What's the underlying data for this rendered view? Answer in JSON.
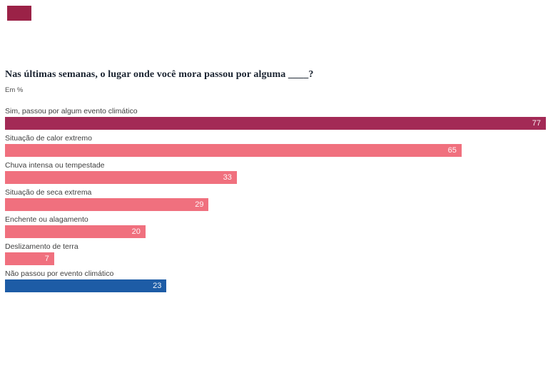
{
  "page": {
    "title": "Nas últimas semanas, o lugar onde você mora passou por alguma ____?",
    "subtitle": "Em %"
  },
  "brand": {
    "color": "#9b2247"
  },
  "chart_data": {
    "type": "bar",
    "orientation": "horizontal",
    "title": "Nas últimas semanas, o lugar onde você mora passou por alguma ____?",
    "unit_label": "Em %",
    "categories": [
      "Sim, passou por algum evento climático",
      "Situação de calor extremo",
      "Chuva intensa ou tempestade",
      "Situação de seca extrema",
      "Enchente ou alagamento",
      "Deslizamento de terra",
      "Não passou por evento climático"
    ],
    "values": [
      77,
      65,
      33,
      29,
      20,
      7,
      23
    ],
    "bar_colors": [
      "#a32a56",
      "#f0707e",
      "#f0707e",
      "#f0707e",
      "#f0707e",
      "#f0707e",
      "#1d5ca6"
    ],
    "value_label_color": "#ffffff",
    "xlim": [
      0,
      77
    ],
    "grid": false,
    "legend": false,
    "data_labels": "inside-end"
  }
}
